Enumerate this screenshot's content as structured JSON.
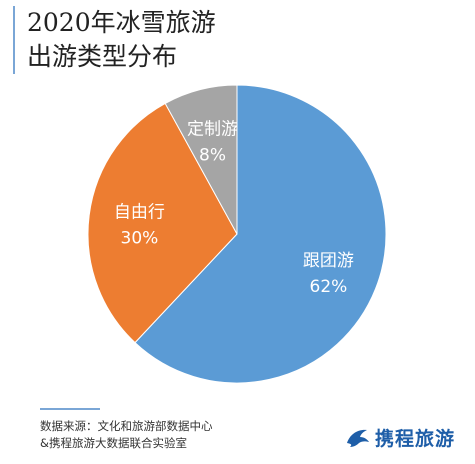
{
  "header": {
    "title_line1": "2020年冰雪旅游",
    "title_line2": "出游类型分布"
  },
  "chart_data": {
    "type": "pie",
    "title": "2020年冰雪旅游出游类型分布",
    "slices": [
      {
        "label": "跟团游",
        "value": 62,
        "value_label": "62%",
        "color": "#5b9bd5"
      },
      {
        "label": "自由行",
        "value": 30,
        "value_label": "30%",
        "color": "#ed7d31"
      },
      {
        "label": "定制游",
        "value": 8,
        "value_label": "8%",
        "color": "#a5a5a5"
      }
    ]
  },
  "footer": {
    "source_line1": "数据来源：文化和旅游部数据中心",
    "source_line2": "&携程旅游大数据联合实验室",
    "brand_name": "携程旅游",
    "brand_icon": "dolphin-logo-icon",
    "brand_color": "#1e5ea8"
  }
}
